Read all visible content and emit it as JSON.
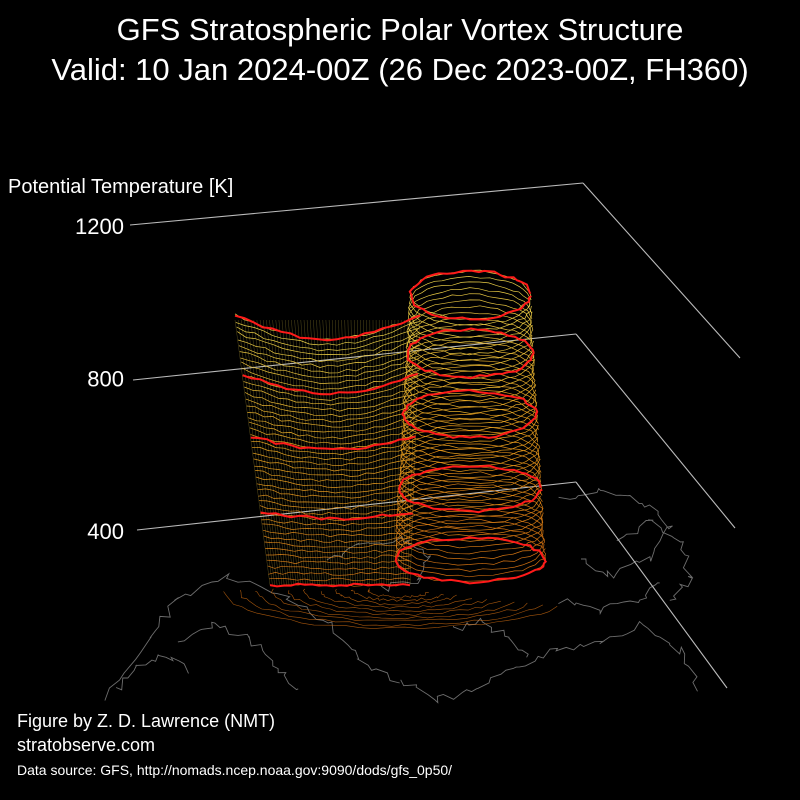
{
  "header": {
    "title_line1": "GFS Stratospheric Polar Vortex Structure",
    "title_line2": "Valid: 10 Jan 2024-00Z  (26 Dec 2023-00Z, FH360)"
  },
  "footer": {
    "credit": "Figure by Z. D. Lawrence (NMT)",
    "website": "stratobserve.com",
    "source": "Data source: GFS, http://nomads.ncep.noaa.gov:9090/dods/gfs_0p50/"
  },
  "chart_data": {
    "type": "3d-isosurface",
    "zlabel": "Potential Temperature [K]",
    "zticks": [
      400,
      800,
      1200
    ],
    "grid": true,
    "colors": {
      "background": "#000000",
      "axis": "#bbbbbb",
      "coastline": "#6e6e6e",
      "contour_low": "#cc6a10",
      "contour_mid": "#e29a1c",
      "contour_high": "#e8d04a",
      "highlight_levels": "#ff1a1a"
    }
  }
}
